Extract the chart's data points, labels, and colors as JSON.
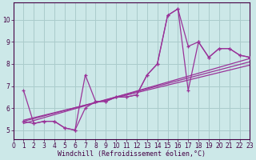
{
  "xlabel": "Windchill (Refroidissement éolien,°C)",
  "background_color": "#cce8e8",
  "grid_color": "#aacccc",
  "line_color": "#993399",
  "ylim": [
    4.6,
    10.8
  ],
  "xlim": [
    0,
    23
  ],
  "yticks": [
    5,
    6,
    7,
    8,
    9,
    10
  ],
  "xticks": [
    0,
    1,
    2,
    3,
    4,
    5,
    6,
    7,
    8,
    9,
    10,
    11,
    12,
    13,
    14,
    15,
    16,
    17,
    18,
    19,
    20,
    21,
    22,
    23
  ],
  "line1_x": [
    1,
    2,
    3,
    4,
    5,
    6,
    7,
    8,
    9,
    10,
    11,
    12,
    13,
    14,
    15,
    16,
    17,
    18,
    19,
    20,
    21,
    22,
    23
  ],
  "line1_y": [
    6.8,
    5.3,
    5.4,
    5.4,
    5.1,
    5.0,
    7.5,
    6.3,
    6.3,
    6.5,
    6.5,
    6.6,
    7.5,
    8.0,
    10.2,
    10.5,
    8.8,
    9.0,
    8.3,
    8.7,
    8.7,
    8.4,
    8.3
  ],
  "line2_x": [
    1,
    2,
    3,
    4,
    5,
    6,
    7,
    8,
    9,
    10,
    11,
    12,
    13,
    14,
    15,
    16,
    17,
    18,
    19,
    20,
    21,
    22,
    23
  ],
  "line2_y": [
    5.4,
    5.3,
    5.4,
    5.4,
    5.1,
    5.0,
    6.0,
    6.3,
    6.3,
    6.5,
    6.5,
    6.6,
    7.5,
    8.0,
    10.2,
    10.5,
    6.8,
    9.0,
    8.3,
    8.7,
    8.7,
    8.4,
    8.3
  ],
  "trend1_x": [
    1,
    23
  ],
  "trend1_y": [
    5.3,
    8.25
  ],
  "trend2_x": [
    1,
    23
  ],
  "trend2_y": [
    5.4,
    8.1
  ],
  "trend3_x": [
    1,
    23
  ],
  "trend3_y": [
    5.45,
    7.95
  ]
}
